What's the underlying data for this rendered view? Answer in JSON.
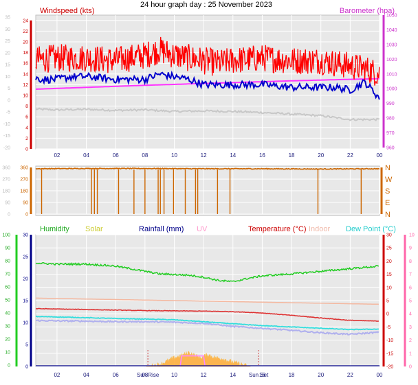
{
  "page": {
    "title": "24 hour graph day : 25 November 2023"
  },
  "wind_panel": {
    "left_label": "Windspeed (kts)",
    "right_label": "Barometer (hpa)",
    "left_ticks": [
      "0",
      "2",
      "4",
      "6",
      "8",
      "10",
      "12",
      "14",
      "16",
      "18",
      "20",
      "22",
      "24"
    ],
    "far_left_ticks": [
      "-20",
      "-15",
      "-10",
      "-5",
      "0",
      "5",
      "10",
      "15",
      "20",
      "25",
      "30",
      "35"
    ],
    "right_ticks": [
      "960",
      "970",
      "980",
      "990",
      "1000",
      "1010",
      "1020",
      "1030",
      "1040",
      "1050"
    ]
  },
  "dir_panel": {
    "left_ticks": [
      "0",
      "90",
      "180",
      "270",
      "360"
    ],
    "far_left_ticks": [
      "0",
      "90",
      "180",
      "270",
      "360"
    ],
    "right_ticks": [
      "N",
      "E",
      "S",
      "W",
      "N"
    ]
  },
  "climate_panel": {
    "labels": {
      "humidity": "Humidity",
      "solar": "Solar",
      "rainfall": "Rainfall (mm)",
      "uv": "UV",
      "temperature": "Temperature (°C)",
      "indoor": "Indoor",
      "dewpoint": "Dew Point (°C)"
    },
    "left_ticks": [
      "0",
      "5",
      "10",
      "15",
      "20",
      "25",
      "30"
    ],
    "far_left_ticks": [
      "0",
      "10",
      "20",
      "30",
      "40",
      "50",
      "60",
      "70",
      "80",
      "90",
      "100"
    ],
    "right_ticks": [
      "-20",
      "-15",
      "-10",
      "-5",
      "0",
      "5",
      "10",
      "15",
      "20",
      "25",
      "30"
    ],
    "far_right_ticks": [
      "0",
      "1",
      "2",
      "3",
      "4",
      "5",
      "6",
      "7",
      "8",
      "9",
      "10"
    ],
    "sunrise_label": "Sun Rise",
    "sunset_label": "Sun Set"
  },
  "x_ticks": [
    "02",
    "04",
    "06",
    "08",
    "10",
    "12",
    "14",
    "16",
    "18",
    "20",
    "22",
    "00"
  ],
  "colors": {
    "wind_gust": "#ff0000",
    "wind_avg": "#0000cc",
    "barometer": "#ff33ff",
    "grey_trace": "#c8c8c8",
    "direction": "#cc6600",
    "humidity": "#22cc22",
    "temperature": "#dd3333",
    "indoor": "#f4b8a0",
    "dewpoint": "#33dddd",
    "solar": "#ffaa33",
    "lavender": "#b0b0ee",
    "uv": "#ff88ff"
  },
  "chart_data": [
    {
      "type": "line",
      "x_unit": "hour",
      "title": "24 hour graph day : 25 November 2023",
      "ylabel": "Windspeed (kts)",
      "y2label": "Barometer (hpa)",
      "ylim": [
        0,
        25
      ],
      "y2lim": [
        960,
        1050
      ],
      "series": [
        {
          "name": "Windspeed (kts)",
          "axis": "left",
          "color": "#ff0000",
          "noise": 2.6,
          "x": [
            0,
            2,
            4,
            6,
            8,
            9,
            10,
            12,
            13,
            14,
            16,
            18,
            20,
            22,
            23,
            24
          ],
          "values": [
            16.5,
            17,
            17,
            16.5,
            17.5,
            18.5,
            17.5,
            16.5,
            16,
            16.5,
            17,
            16.5,
            16.5,
            15.5,
            15,
            14
          ]
        },
        {
          "name": "",
          "axis": "left",
          "color": "#0000cc",
          "noise": 0.7,
          "x": [
            0,
            1,
            2,
            3,
            4,
            6,
            8,
            9,
            10,
            11,
            12,
            13,
            14,
            16,
            18,
            20,
            21,
            22,
            23,
            24
          ],
          "values": [
            13.5,
            13,
            13,
            13.5,
            13.5,
            13,
            13,
            14,
            13.5,
            13,
            12,
            12,
            12,
            12,
            11.5,
            11.5,
            11.5,
            11,
            12.5,
            9.5
          ]
        },
        {
          "name": "Barometer (hpa)",
          "axis": "right",
          "color": "#ff33ff",
          "noise": 0,
          "x": [
            0,
            2,
            4,
            6,
            8,
            10,
            12,
            14,
            16,
            18,
            20,
            22,
            24
          ],
          "values": [
            1000.0,
            1000.7,
            1001.4,
            1002.1,
            1002.8,
            1003.4,
            1004.0,
            1004.6,
            1005.2,
            1005.8,
            1006.3,
            1006.8,
            1007.2
          ]
        },
        {
          "name": "",
          "axis": "left",
          "color": "#c8c8c8",
          "noise": 0.18,
          "x": [
            0,
            2,
            4,
            6,
            8,
            10,
            12,
            14,
            16,
            18,
            20,
            22,
            24
          ],
          "values": [
            7.5,
            7.3,
            7.4,
            7.2,
            7.3,
            7.0,
            7.1,
            7.0,
            6.8,
            6.5,
            6.2,
            5.5,
            5.5
          ]
        }
      ]
    },
    {
      "type": "line",
      "x_unit": "hour",
      "ylim": [
        0,
        360
      ],
      "series": [
        {
          "name": "",
          "color": "#cc6600",
          "base": 350,
          "x": [
            0,
            4,
            8,
            12,
            16,
            20,
            24
          ],
          "values": [
            350,
            352,
            352,
            350,
            350,
            348,
            350
          ],
          "drops_to_zero_at_hour": [
            0.95,
            4.35,
            4.55,
            4.75,
            6.2,
            7.25,
            8.0,
            8.9,
            9.05,
            9.3,
            9.95,
            10.75,
            11.45,
            11.6,
            12.95,
            13.8,
            19.8,
            22.75
          ]
        }
      ]
    },
    {
      "type": "line",
      "x_unit": "hour",
      "ylabel": "Temperature (°C)",
      "ylim": [
        -20,
        30
      ],
      "series": [
        {
          "name": "Humidity",
          "axis": "humidity_pct",
          "color": "#22cc22",
          "noise": 0.7,
          "x": [
            0,
            1,
            2,
            4,
            6,
            8,
            9,
            10,
            11,
            12,
            13,
            14,
            15,
            16,
            18,
            20,
            22,
            24
          ],
          "values": [
            80,
            79,
            78.5,
            78.5,
            77,
            73,
            71,
            70.5,
            70,
            68.5,
            66,
            65,
            67.5,
            69.5,
            71,
            73,
            75,
            77
          ]
        },
        {
          "name": "Temperature (°C)",
          "axis": "temp",
          "color": "#dd3333",
          "noise": 0.1,
          "x": [
            0,
            4,
            8,
            12,
            14,
            16,
            18,
            20,
            22,
            24
          ],
          "values": [
            2,
            1.6,
            1.2,
            1.0,
            0.8,
            0.3,
            -0.6,
            -1.6,
            -2.5,
            -2.8
          ]
        },
        {
          "name": "Indoor",
          "axis": "temp",
          "color": "#f4b8a0",
          "noise": 0,
          "x": [
            0,
            4,
            8,
            12,
            16,
            20,
            24
          ],
          "values": [
            6,
            5.6,
            5.2,
            4.8,
            4.4,
            4.0,
            3.6
          ]
        },
        {
          "name": "Dew Point (°C)",
          "axis": "temp",
          "color": "#33dddd",
          "noise": 0.12,
          "x": [
            0,
            2,
            4,
            6,
            8,
            10,
            12,
            14,
            16,
            18,
            20,
            22,
            24
          ],
          "values": [
            -1.0,
            -1.2,
            -1.5,
            -1.8,
            -2.0,
            -2.3,
            -3.0,
            -3.8,
            -4.5,
            -5.0,
            -5.5,
            -6.0,
            -5.8
          ]
        },
        {
          "name": "",
          "axis": "temp",
          "color": "#b0b0ee",
          "noise": 0.25,
          "x": [
            0,
            2,
            4,
            6,
            8,
            10,
            12,
            14,
            16,
            18,
            20,
            22,
            24
          ],
          "values": [
            -2.5,
            -2.7,
            -2.8,
            -3.0,
            -3.0,
            -3.2,
            -3.6,
            -4.8,
            -5.5,
            -6.3,
            -7.2,
            -7.8,
            -7.0
          ]
        },
        {
          "name": "Solar",
          "axis": "left",
          "color": "#ffaa33",
          "fill": true,
          "noise": 0.5,
          "x": [
            8.1,
            9,
            9.5,
            10,
            10.5,
            11,
            11.3,
            11.8,
            12.3,
            12.8,
            13.3,
            14,
            14.5,
            15,
            15.2
          ],
          "values": [
            0,
            0.5,
            1.2,
            2.0,
            2.5,
            3.2,
            2.7,
            2.0,
            2.7,
            2.0,
            1.8,
            1.0,
            0.6,
            0.1,
            0
          ]
        },
        {
          "name": "UV",
          "axis": "uv",
          "color": "#ff88ff",
          "step": true,
          "x": [
            10.4,
            10.5,
            12.0,
            12.1
          ],
          "values": [
            0,
            0.8,
            0.8,
            0
          ]
        }
      ],
      "sunrise_hour": 8.2,
      "sunset_hour": 15.75
    }
  ]
}
